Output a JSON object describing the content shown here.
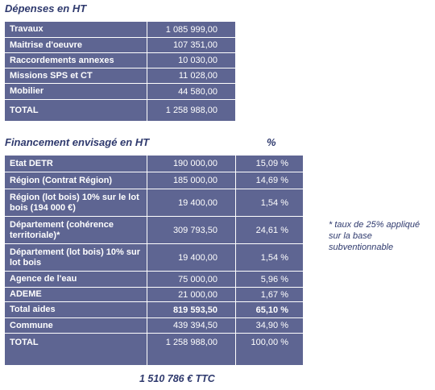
{
  "depenses": {
    "title": "Dépenses en HT",
    "rows": [
      {
        "label": "Travaux",
        "value": "1 085 999,00"
      },
      {
        "label": "Maitrise d'oeuvre",
        "value": "107 351,00"
      },
      {
        "label": "Raccordements annexes",
        "value": "10 030,00"
      },
      {
        "label": "Missions SPS et CT",
        "value": "11 028,00"
      },
      {
        "label": "Mobilier",
        "value": "44 580,00"
      },
      {
        "label": "TOTAL",
        "value": "1 258 988,00"
      }
    ]
  },
  "financement": {
    "title": "Financement envisagé en HT",
    "pct_header": "%",
    "rows": [
      {
        "label": "Etat DETR",
        "value": "190 000,00",
        "pct": "15,09 %"
      },
      {
        "label": "Région (Contrat Région)",
        "value": "185 000,00",
        "pct": "14,69 %"
      },
      {
        "label": "Région (lot bois) 10% sur le lot bois (194 000 €)",
        "value": "19 400,00",
        "pct": "1,54 %"
      },
      {
        "label": "Département (cohérence territoriale)*",
        "value": "309 793,50",
        "pct": "24,61 %"
      },
      {
        "label": "Département (lot bois) 10% sur lot bois",
        "value": "19 400,00",
        "pct": "1,54 %"
      },
      {
        "label": "Agence de l'eau",
        "value": "75 000,00",
        "pct": "5,96 %"
      },
      {
        "label": "ADEME",
        "value": "21 000,00",
        "pct": "1,67 %"
      },
      {
        "label": "Total aides",
        "value": "819 593,50",
        "pct": "65,10 %"
      },
      {
        "label": "Commune",
        "value": "439 394,50",
        "pct": "34,90 %"
      },
      {
        "label": "TOTAL",
        "value": "1 258 988,00",
        "pct": "100,00 %"
      }
    ]
  },
  "note": "* taux de 25% appliqué sur la base subventionnable",
  "ttc": "1 510 786 € TTC"
}
